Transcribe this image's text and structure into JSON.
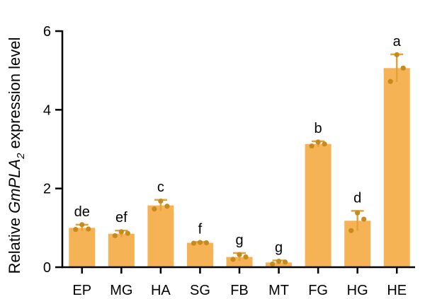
{
  "chart_data": {
    "type": "bar",
    "ylabel": {
      "prefix": "Relative ",
      "gene_main": "GmPLA",
      "gene_sub": "2",
      "suffix": " expression level"
    },
    "ylim": [
      0,
      6
    ],
    "yticks": [
      "0",
      "2",
      "4",
      "6"
    ],
    "grid": false,
    "categories": [
      "EP",
      "MG",
      "HA",
      "SG",
      "FB",
      "MT",
      "FG",
      "HG",
      "HE"
    ],
    "values": [
      1.0,
      0.85,
      1.57,
      0.62,
      0.26,
      0.12,
      3.13,
      1.18,
      5.06
    ],
    "errors": [
      0.08,
      0.08,
      0.14,
      0.02,
      0.1,
      0.05,
      0.07,
      0.25,
      0.35
    ],
    "replicates": [
      [
        0.96,
        1.08,
        0.97
      ],
      [
        0.8,
        0.9,
        0.86
      ],
      [
        1.48,
        1.68,
        1.55
      ],
      [
        0.61,
        0.63,
        0.62
      ],
      [
        0.2,
        0.32,
        0.26
      ],
      [
        0.08,
        0.15,
        0.13
      ],
      [
        3.08,
        3.18,
        3.13
      ],
      [
        0.93,
        1.38,
        1.22
      ],
      [
        4.72,
        5.4,
        5.06
      ]
    ],
    "significance": [
      "de",
      "ef",
      "c",
      "f",
      "g",
      "g",
      "b",
      "d",
      "a"
    ],
    "colors": {
      "bar": "#F5B355",
      "point": "#C98A1C",
      "error": "#E8A038",
      "axis": "#000000"
    }
  }
}
